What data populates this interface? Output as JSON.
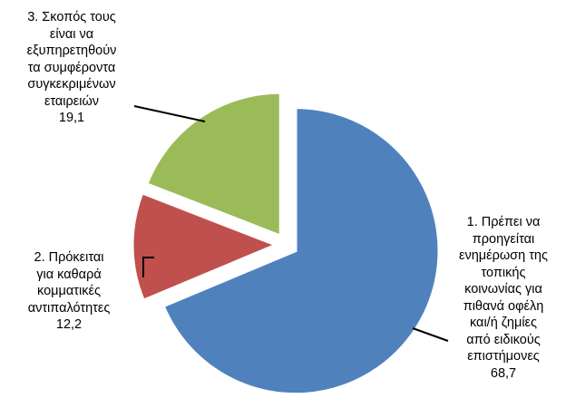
{
  "chart_data": {
    "type": "pie",
    "title": "",
    "start_angle_deg": 0,
    "direction": "clockwise",
    "exploded": true,
    "slices": [
      {
        "label": [
          "1. Πρέπει να",
          "προηγείται",
          "ενημέρωση της",
          "τοπικής",
          "κοινωνίας για",
          "πιθανά οφέλη",
          "και/ή  ζημίες",
          "από ειδικούς",
          "επιστήμονες"
        ],
        "value": 68.7,
        "value_label": "68,7",
        "color": "#4F81BD"
      },
      {
        "label": [
          "2. Πρόκειται",
          "για καθαρά",
          "κομματικές",
          "αντιπαλότητες"
        ],
        "value": 12.2,
        "value_label": "12,2",
        "color": "#C0504D"
      },
      {
        "label": [
          "3. Σκοπός τους",
          "είναι να",
          "εξυπηρετηθούν",
          "τα συμφέροντα",
          "συγκεκριμένων",
          "εταιρειών"
        ],
        "value": 19.1,
        "value_label": "19,1",
        "color": "#9BBB59"
      }
    ]
  }
}
